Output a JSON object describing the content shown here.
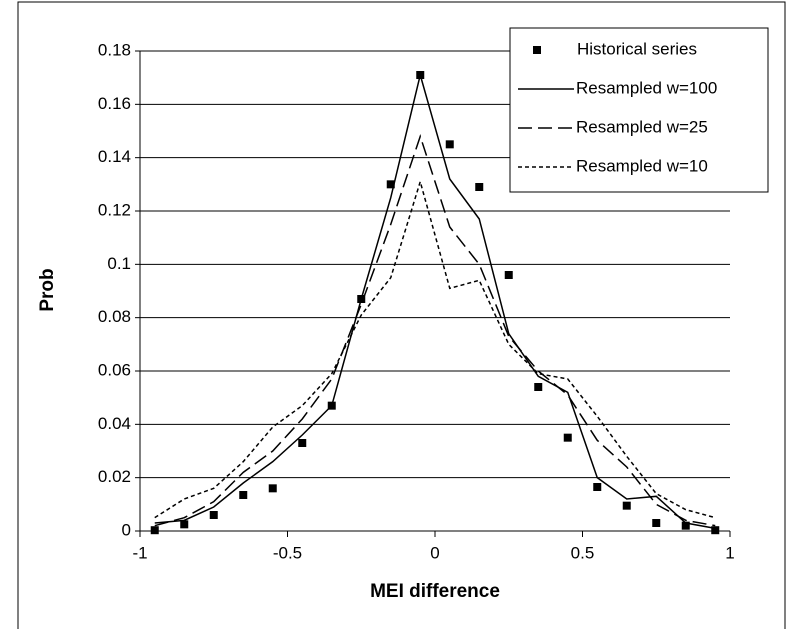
{
  "chart_data": {
    "type": "line",
    "x_label": "MEI difference",
    "y_label": "Prob",
    "x": [
      -0.95,
      -0.85,
      -0.75,
      -0.65,
      -0.55,
      -0.45,
      -0.35,
      -0.25,
      -0.15,
      -0.05,
      0.05,
      0.15,
      0.25,
      0.35,
      0.45,
      0.55,
      0.65,
      0.75,
      0.85,
      0.95
    ],
    "series": [
      {
        "name": "Historical series",
        "color": "#000000",
        "style": "markers",
        "values": [
          0.0003,
          0.0025,
          0.006,
          0.0135,
          0.016,
          0.033,
          0.047,
          0.087,
          0.13,
          0.171,
          0.145,
          0.129,
          0.096,
          0.054,
          0.035,
          0.0165,
          0.0095,
          0.003,
          0.002,
          0.0003
        ]
      },
      {
        "name": "Resampled w=100",
        "color": "#000000",
        "style": "solid",
        "values": [
          0.003,
          0.004,
          0.009,
          0.018,
          0.026,
          0.036,
          0.047,
          0.087,
          0.125,
          0.171,
          0.132,
          0.117,
          0.074,
          0.058,
          0.052,
          0.02,
          0.012,
          0.013,
          0.003,
          0.001
        ]
      },
      {
        "name": "Resampled w=25",
        "color": "#000000",
        "style": "dashed",
        "values": [
          0.002,
          0.005,
          0.011,
          0.022,
          0.03,
          0.042,
          0.057,
          0.085,
          0.115,
          0.148,
          0.114,
          0.1,
          0.073,
          0.06,
          0.051,
          0.034,
          0.024,
          0.01,
          0.004,
          0.002
        ]
      },
      {
        "name": "Resampled w=10",
        "color": "#000000",
        "style": "dotted",
        "values": [
          0.005,
          0.012,
          0.016,
          0.026,
          0.039,
          0.047,
          0.059,
          0.081,
          0.095,
          0.131,
          0.091,
          0.094,
          0.07,
          0.059,
          0.057,
          0.043,
          0.028,
          0.014,
          0.008,
          0.005
        ]
      }
    ],
    "xlim": [
      -1,
      1
    ],
    "xticks": [
      -1,
      -0.5,
      0,
      0.5,
      1
    ],
    "ylim": [
      0,
      0.18
    ],
    "yticks": [
      0,
      0.02,
      0.04,
      0.06,
      0.08,
      0.1,
      0.12,
      0.14,
      0.16,
      0.18
    ],
    "grid": true,
    "legend": "top-right"
  }
}
